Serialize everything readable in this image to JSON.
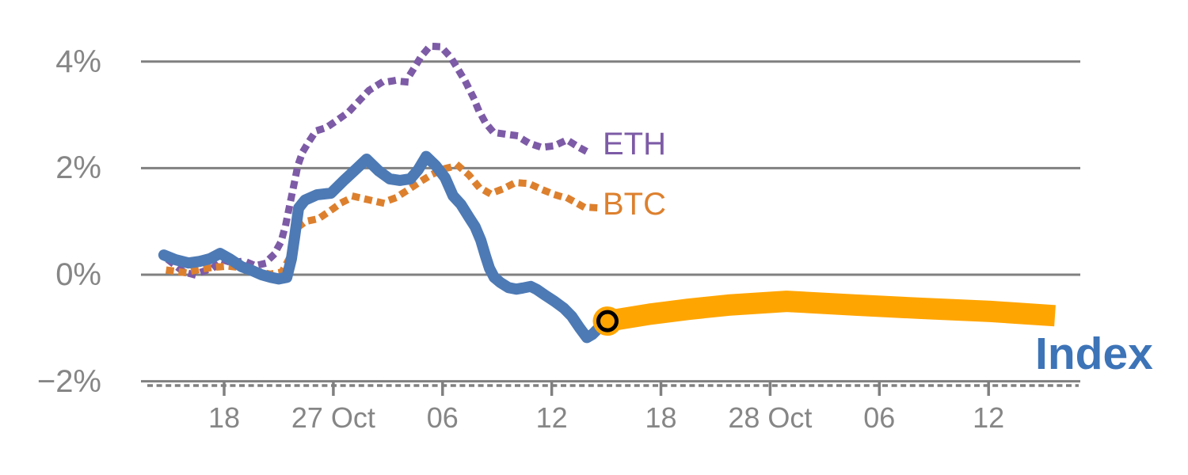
{
  "chart_data": {
    "type": "line",
    "title": "",
    "x_axis": {
      "tick_labels": [
        "18",
        "27 Oct",
        "06",
        "12",
        "18",
        "28 Oct",
        "06",
        "12"
      ],
      "tick_hours": [
        0,
        6,
        12,
        18,
        24,
        30,
        36,
        42
      ],
      "range_hours": [
        -4.57,
        47.0
      ],
      "minor_tick_interval_hours": 0.5,
      "axis_color": "#808080",
      "label_color": "#868686"
    },
    "y_axis": {
      "tick_labels": [
        "4%",
        "2%",
        "0%",
        "−2%"
      ],
      "tick_values": [
        4,
        2,
        0,
        -2
      ],
      "range": [
        -2,
        4.6
      ],
      "grid_on": true,
      "grid_color": "#808080",
      "label_color": "#868686"
    },
    "series": [
      {
        "name": "ETH",
        "style": "dotted",
        "color": "#7d5ba6",
        "width": 9,
        "points": [
          [
            -2.96,
            0.25
          ],
          [
            -2.22,
            0.05
          ],
          [
            -1.65,
            0.0
          ],
          [
            -1.09,
            0.07
          ],
          [
            -0.57,
            0.14
          ],
          [
            -0.09,
            0.28
          ],
          [
            0.48,
            0.22
          ],
          [
            1.09,
            0.26
          ],
          [
            1.7,
            0.17
          ],
          [
            2.22,
            0.21
          ],
          [
            2.74,
            0.38
          ],
          [
            3.13,
            0.62
          ],
          [
            3.39,
            0.95
          ],
          [
            3.61,
            1.32
          ],
          [
            3.83,
            1.68
          ],
          [
            4.05,
            2.05
          ],
          [
            4.31,
            2.3
          ],
          [
            4.66,
            2.5
          ],
          [
            5.05,
            2.7
          ],
          [
            5.61,
            2.76
          ],
          [
            6.22,
            2.9
          ],
          [
            6.83,
            3.05
          ],
          [
            7.35,
            3.24
          ],
          [
            7.96,
            3.46
          ],
          [
            8.62,
            3.6
          ],
          [
            9.31,
            3.64
          ],
          [
            9.97,
            3.62
          ],
          [
            10.44,
            3.88
          ],
          [
            10.83,
            4.1
          ],
          [
            11.31,
            4.29
          ],
          [
            11.92,
            4.28
          ],
          [
            12.45,
            4.08
          ],
          [
            12.88,
            3.84
          ],
          [
            13.27,
            3.62
          ],
          [
            13.66,
            3.35
          ],
          [
            13.97,
            3.1
          ],
          [
            14.36,
            2.85
          ],
          [
            14.8,
            2.67
          ],
          [
            15.4,
            2.64
          ],
          [
            16.06,
            2.61
          ],
          [
            16.75,
            2.47
          ],
          [
            17.45,
            2.39
          ],
          [
            18.15,
            2.42
          ],
          [
            18.84,
            2.53
          ],
          [
            19.5,
            2.39
          ],
          [
            20.15,
            2.27
          ]
        ]
      },
      {
        "name": "BTC",
        "style": "dotted",
        "color": "#dd802e",
        "width": 9,
        "points": [
          [
            -3.0,
            0.08
          ],
          [
            -2.18,
            0.04
          ],
          [
            -1.35,
            0.1
          ],
          [
            -0.57,
            0.14
          ],
          [
            0.22,
            0.16
          ],
          [
            1.04,
            0.13
          ],
          [
            1.78,
            0.07
          ],
          [
            2.52,
            0.01
          ],
          [
            3.18,
            0.05
          ],
          [
            3.57,
            0.3
          ],
          [
            3.83,
            0.58
          ],
          [
            4.09,
            0.9
          ],
          [
            4.48,
            1.0
          ],
          [
            5.18,
            1.05
          ],
          [
            5.83,
            1.2
          ],
          [
            6.44,
            1.35
          ],
          [
            7.14,
            1.47
          ],
          [
            7.88,
            1.41
          ],
          [
            8.66,
            1.35
          ],
          [
            9.4,
            1.44
          ],
          [
            10.05,
            1.58
          ],
          [
            10.7,
            1.73
          ],
          [
            11.4,
            1.88
          ],
          [
            12.1,
            1.99
          ],
          [
            12.84,
            2.05
          ],
          [
            13.45,
            1.87
          ],
          [
            14.01,
            1.64
          ],
          [
            14.62,
            1.52
          ],
          [
            15.32,
            1.61
          ],
          [
            16.01,
            1.73
          ],
          [
            16.75,
            1.71
          ],
          [
            17.45,
            1.6
          ],
          [
            18.19,
            1.5
          ],
          [
            18.97,
            1.42
          ],
          [
            19.76,
            1.27
          ],
          [
            20.8,
            1.25
          ]
        ]
      },
      {
        "name": "Index (history)",
        "style": "solid",
        "color": "#4d7ab5",
        "width": 14,
        "points": [
          [
            -3.31,
            0.37
          ],
          [
            -2.65,
            0.28
          ],
          [
            -1.96,
            0.22
          ],
          [
            -1.35,
            0.25
          ],
          [
            -0.78,
            0.3
          ],
          [
            -0.22,
            0.4
          ],
          [
            0.3,
            0.3
          ],
          [
            0.96,
            0.15
          ],
          [
            1.52,
            0.08
          ],
          [
            2.05,
            0.0
          ],
          [
            2.57,
            -0.05
          ],
          [
            3.0,
            -0.08
          ],
          [
            3.44,
            -0.05
          ],
          [
            3.7,
            0.3
          ],
          [
            3.87,
            0.7
          ],
          [
            4.09,
            1.25
          ],
          [
            4.44,
            1.4
          ],
          [
            5.09,
            1.5
          ],
          [
            5.87,
            1.53
          ],
          [
            6.61,
            1.78
          ],
          [
            7.27,
            1.99
          ],
          [
            7.83,
            2.17
          ],
          [
            8.49,
            1.95
          ],
          [
            9.09,
            1.8
          ],
          [
            9.66,
            1.77
          ],
          [
            10.23,
            1.8
          ],
          [
            10.66,
            1.97
          ],
          [
            11.1,
            2.22
          ],
          [
            11.62,
            2.05
          ],
          [
            12.14,
            1.82
          ],
          [
            12.58,
            1.48
          ],
          [
            13.01,
            1.32
          ],
          [
            13.45,
            1.08
          ],
          [
            13.79,
            0.9
          ],
          [
            14.1,
            0.65
          ],
          [
            14.36,
            0.35
          ],
          [
            14.58,
            0.12
          ],
          [
            14.84,
            -0.05
          ],
          [
            15.19,
            -0.15
          ],
          [
            15.62,
            -0.24
          ],
          [
            16.06,
            -0.27
          ],
          [
            16.41,
            -0.25
          ],
          [
            16.84,
            -0.22
          ],
          [
            17.19,
            -0.28
          ],
          [
            17.62,
            -0.38
          ],
          [
            18.15,
            -0.5
          ],
          [
            18.67,
            -0.63
          ],
          [
            19.1,
            -0.78
          ],
          [
            19.54,
            -1.0
          ],
          [
            19.93,
            -1.18
          ],
          [
            20.23,
            -1.12
          ],
          [
            20.58,
            -1.0
          ],
          [
            20.93,
            -0.9
          ],
          [
            21.06,
            -0.87
          ]
        ]
      },
      {
        "name": "Index (continuation)",
        "style": "solid",
        "color": "#ffa502",
        "width": 27,
        "points": [
          [
            21.06,
            -0.87
          ],
          [
            23.4,
            -0.74
          ],
          [
            25.5,
            -0.65
          ],
          [
            27.7,
            -0.57
          ],
          [
            30.9,
            -0.5
          ],
          [
            34.7,
            -0.57
          ],
          [
            38.2,
            -0.63
          ],
          [
            42.1,
            -0.69
          ],
          [
            45.65,
            -0.77
          ]
        ]
      }
    ],
    "marker": {
      "series": "Index",
      "h": 21.06,
      "pct": -0.87,
      "fill": "#ffa502",
      "ring": "#000000"
    },
    "labels": {
      "eth": {
        "text": "ETH",
        "color": "#7d5ba6"
      },
      "btc": {
        "text": "BTC",
        "color": "#dd802e"
      },
      "index": {
        "text": "Index",
        "color": "#3d74b8"
      }
    },
    "legend_position": "inline-right-of-lines"
  }
}
